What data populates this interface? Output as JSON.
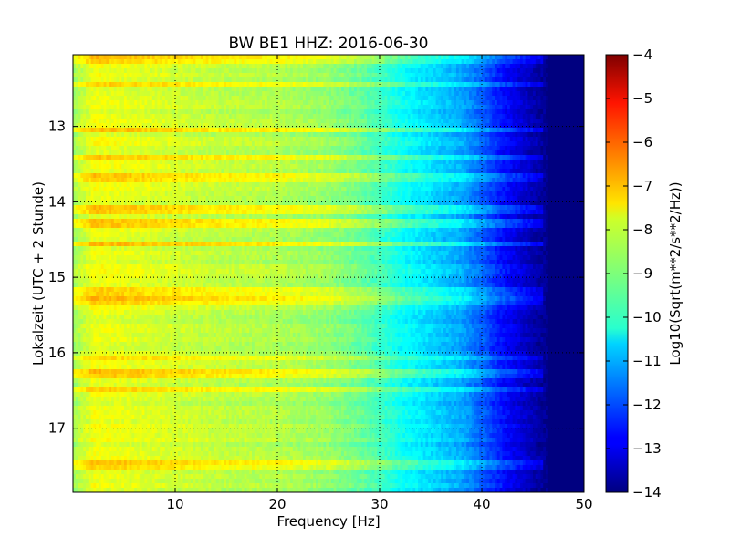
{
  "chart_data": {
    "type": "heatmap",
    "title": "BW BE1 HHZ: 2016-06-30",
    "xlabel": "Frequency [Hz]",
    "ylabel": "Lokalzeit (UTC + 2 Stunde)",
    "colorbar_label": "Log10(Sqrt(m**2/s**2/Hz))",
    "xlim": [
      0,
      50
    ],
    "ylim": [
      17.85,
      12.05
    ],
    "y_inverted": true,
    "x_ticks": [
      10,
      20,
      30,
      40,
      50
    ],
    "y_ticks": [
      13,
      14,
      15,
      16,
      17
    ],
    "clim": [
      -14,
      -4
    ],
    "colorbar_ticks": [
      -4,
      -5,
      -6,
      -7,
      -8,
      -9,
      -10,
      -11,
      -12,
      -13,
      -14
    ],
    "colormap": "jet",
    "grid": true,
    "spectral_profile": {
      "frequency_hz": [
        0,
        2,
        5,
        10,
        15,
        20,
        25,
        28,
        30,
        32,
        35,
        38,
        40,
        42,
        45,
        47,
        50
      ],
      "log10_amplitude": [
        -8.7,
        -7.9,
        -8.0,
        -8.2,
        -8.4,
        -8.5,
        -8.8,
        -9.2,
        -9.6,
        -10.1,
        -10.6,
        -11.1,
        -11.8,
        -12.6,
        -13.5,
        -14,
        -14
      ]
    },
    "high_energy_bands_hour": [
      12.1,
      12.45,
      13.05,
      13.42,
      13.68,
      14.1,
      14.28,
      14.55,
      15.2,
      15.32,
      16.08,
      16.28,
      16.5,
      17.5
    ]
  }
}
